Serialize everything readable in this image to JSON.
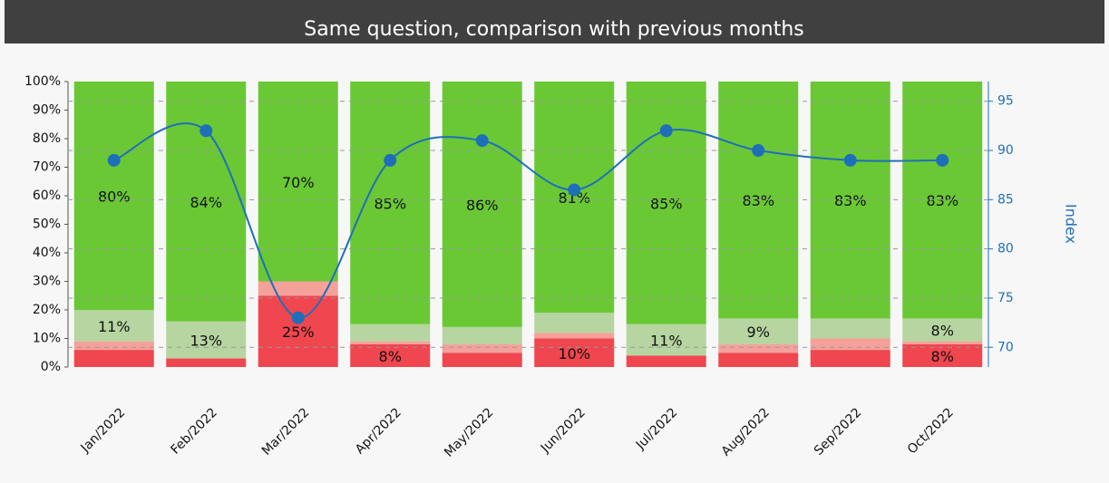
{
  "chart_data": {
    "type": "stacked-bar-line",
    "title": "Same question, comparison with previous months",
    "categories": [
      "Jan/2022",
      "Feb/2022",
      "Mar/2022",
      "Apr/2022",
      "May/2022",
      "Jun/2022",
      "Jul/2022",
      "Aug/2022",
      "Sep/2022",
      "Oct/2022"
    ],
    "series": [
      {
        "color": "#f0464f",
        "values": [
          6,
          3,
          25,
          8,
          5,
          10,
          4,
          5,
          6,
          8
        ],
        "value_labels": [
          null,
          null,
          "25%",
          "8%",
          null,
          "10%",
          null,
          null,
          null,
          "8%"
        ]
      },
      {
        "color": "#f4a19a",
        "values": [
          3,
          0,
          5,
          1,
          3,
          2,
          0,
          3,
          4,
          1
        ],
        "value_labels": [
          null,
          null,
          null,
          null,
          null,
          null,
          null,
          null,
          null,
          null
        ]
      },
      {
        "color": "#b6d5a0",
        "values": [
          11,
          13,
          0,
          6,
          6,
          7,
          11,
          9,
          7,
          8
        ],
        "value_labels": [
          "11%",
          "13%",
          null,
          null,
          null,
          null,
          "11%",
          "9%",
          null,
          "8%"
        ]
      },
      {
        "color": "#6ac835",
        "values": [
          80,
          84,
          70,
          85,
          86,
          81,
          85,
          83,
          83,
          83
        ],
        "value_labels": [
          "80%",
          "84%",
          "70%",
          "85%",
          "86%",
          "81%",
          "85%",
          "83%",
          "83%",
          "83%"
        ]
      },
      {
        "type": "line",
        "axis": "y2",
        "color": "#1e6fba",
        "values": [
          89,
          92,
          73,
          89,
          91,
          86,
          92,
          90,
          89,
          89
        ]
      }
    ],
    "ylim": [
      0,
      100
    ],
    "yticks": [
      {
        "value": 0,
        "label": "0%"
      },
      {
        "value": 10,
        "label": "10%"
      },
      {
        "value": 20,
        "label": "20%"
      },
      {
        "value": 30,
        "label": "30%"
      },
      {
        "value": 40,
        "label": "40%"
      },
      {
        "value": 50,
        "label": "50%"
      },
      {
        "value": 60,
        "label": "60%"
      },
      {
        "value": 70,
        "label": "70%"
      },
      {
        "value": 80,
        "label": "80%"
      },
      {
        "value": 90,
        "label": "90%"
      },
      {
        "value": 100,
        "label": "100%"
      }
    ],
    "y2lim": [
      68,
      97
    ],
    "y2ticks": [
      70,
      75,
      80,
      85,
      90,
      95
    ],
    "y2label": "Index",
    "grid": true
  }
}
